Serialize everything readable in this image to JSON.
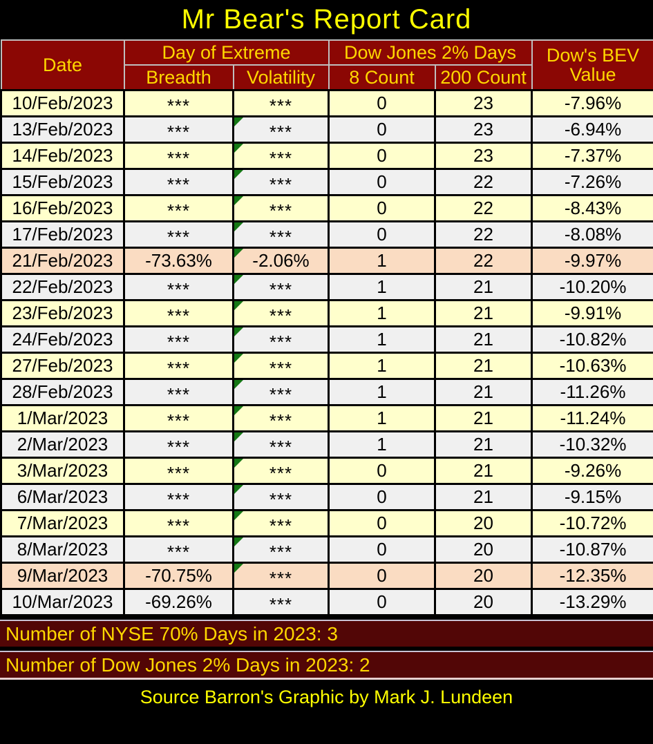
{
  "title": "Mr Bear's Report Card",
  "header": {
    "date": "Date",
    "day_of_extreme": "Day of Extreme",
    "breadth": "Breadth",
    "volatility": "Volatility",
    "dow_jones_2pct_days": "Dow Jones 2% Days",
    "count_8": "8 Count",
    "count_200": "200 Count",
    "bev_line1": "Dow's BEV",
    "bev_line2": "Value"
  },
  "chart_data": {
    "type": "table",
    "title": "Mr Bear's Report Card",
    "columns": [
      "Date",
      "Breadth (Day of Extreme)",
      "Volatility (Day of Extreme)",
      "8 Count (Dow Jones 2% Days)",
      "200 Count (Dow Jones 2% Days)",
      "Dow's BEV Value"
    ],
    "rows": [
      {
        "date": "10/Feb/2023",
        "breadth": "***",
        "volatility": "***",
        "count_8": "0",
        "count_200": "23",
        "bev": "-7.96%",
        "highlight": "yellow",
        "volatility_flag": false
      },
      {
        "date": "13/Feb/2023",
        "breadth": "***",
        "volatility": "***",
        "count_8": "0",
        "count_200": "23",
        "bev": "-6.94%",
        "highlight": "gray",
        "volatility_flag": true
      },
      {
        "date": "14/Feb/2023",
        "breadth": "***",
        "volatility": "***",
        "count_8": "0",
        "count_200": "23",
        "bev": "-7.37%",
        "highlight": "yellow",
        "volatility_flag": true
      },
      {
        "date": "15/Feb/2023",
        "breadth": "***",
        "volatility": "***",
        "count_8": "0",
        "count_200": "22",
        "bev": "-7.26%",
        "highlight": "gray",
        "volatility_flag": true
      },
      {
        "date": "16/Feb/2023",
        "breadth": "***",
        "volatility": "***",
        "count_8": "0",
        "count_200": "22",
        "bev": "-8.43%",
        "highlight": "yellow",
        "volatility_flag": true
      },
      {
        "date": "17/Feb/2023",
        "breadth": "***",
        "volatility": "***",
        "count_8": "0",
        "count_200": "22",
        "bev": "-8.08%",
        "highlight": "gray",
        "volatility_flag": true
      },
      {
        "date": "21/Feb/2023",
        "breadth": "-73.63%",
        "volatility": "-2.06%",
        "count_8": "1",
        "count_200": "22",
        "bev": "-9.97%",
        "highlight": "pink",
        "volatility_flag": true
      },
      {
        "date": "22/Feb/2023",
        "breadth": "***",
        "volatility": "***",
        "count_8": "1",
        "count_200": "21",
        "bev": "-10.20%",
        "highlight": "gray",
        "volatility_flag": true
      },
      {
        "date": "23/Feb/2023",
        "breadth": "***",
        "volatility": "***",
        "count_8": "1",
        "count_200": "21",
        "bev": "-9.91%",
        "highlight": "yellow",
        "volatility_flag": true
      },
      {
        "date": "24/Feb/2023",
        "breadth": "***",
        "volatility": "***",
        "count_8": "1",
        "count_200": "21",
        "bev": "-10.82%",
        "highlight": "gray",
        "volatility_flag": true
      },
      {
        "date": "27/Feb/2023",
        "breadth": "***",
        "volatility": "***",
        "count_8": "1",
        "count_200": "21",
        "bev": "-10.63%",
        "highlight": "yellow",
        "volatility_flag": true
      },
      {
        "date": "28/Feb/2023",
        "breadth": "***",
        "volatility": "***",
        "count_8": "1",
        "count_200": "21",
        "bev": "-11.26%",
        "highlight": "gray",
        "volatility_flag": true
      },
      {
        "date": "1/Mar/2023",
        "breadth": "***",
        "volatility": "***",
        "count_8": "1",
        "count_200": "21",
        "bev": "-11.24%",
        "highlight": "yellow",
        "volatility_flag": true
      },
      {
        "date": "2/Mar/2023",
        "breadth": "***",
        "volatility": "***",
        "count_8": "1",
        "count_200": "21",
        "bev": "-10.32%",
        "highlight": "gray",
        "volatility_flag": true
      },
      {
        "date": "3/Mar/2023",
        "breadth": "***",
        "volatility": "***",
        "count_8": "0",
        "count_200": "21",
        "bev": "-9.26%",
        "highlight": "yellow",
        "volatility_flag": true
      },
      {
        "date": "6/Mar/2023",
        "breadth": "***",
        "volatility": "***",
        "count_8": "0",
        "count_200": "21",
        "bev": "-9.15%",
        "highlight": "gray",
        "volatility_flag": true
      },
      {
        "date": "7/Mar/2023",
        "breadth": "***",
        "volatility": "***",
        "count_8": "0",
        "count_200": "20",
        "bev": "-10.72%",
        "highlight": "yellow",
        "volatility_flag": true
      },
      {
        "date": "8/Mar/2023",
        "breadth": "***",
        "volatility": "***",
        "count_8": "0",
        "count_200": "20",
        "bev": "-10.87%",
        "highlight": "gray",
        "volatility_flag": true
      },
      {
        "date": "9/Mar/2023",
        "breadth": "-70.75%",
        "volatility": "***",
        "count_8": "0",
        "count_200": "20",
        "bev": "-12.35%",
        "highlight": "pink",
        "volatility_flag": true
      },
      {
        "date": "10/Mar/2023",
        "breadth": "-69.26%",
        "volatility": "***",
        "count_8": "0",
        "count_200": "20",
        "bev": "-13.29%",
        "highlight": "gray",
        "volatility_flag": false
      }
    ]
  },
  "footer": {
    "nyse_note": "Number of NYSE 70% Days in 2023: 3",
    "dow_note": "Number of Dow Jones 2% Days in 2023: 2",
    "source": "Source Barron's  Graphic by Mark J. Lundeen"
  },
  "colors": {
    "row_yellow": "#FFFFCC",
    "row_gray": "#F0F0F0",
    "row_pink": "#FADCC2",
    "header_bg": "#8B0704",
    "note_bar_bg": "#520606",
    "flag_green": "#157815",
    "title_text": "#FFFF00",
    "header_text": "#FFD700"
  },
  "icons": {
    "comment_flag": "green-corner-triangle"
  }
}
